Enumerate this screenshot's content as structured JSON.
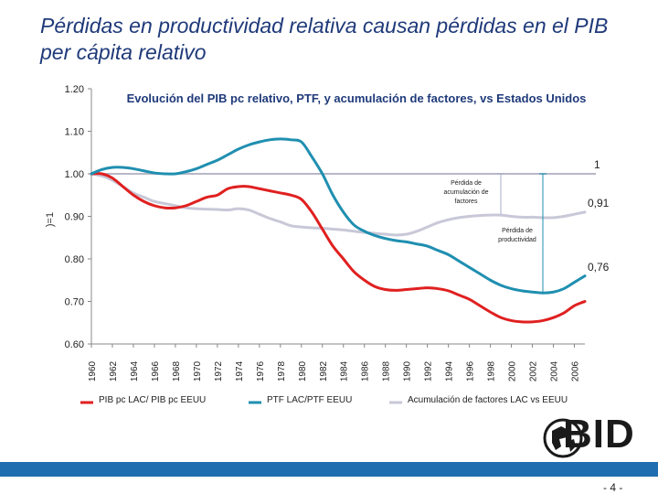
{
  "page": {
    "title": "Pérdidas en productividad relativa causan pérdidas en el PIB per cápita relativo",
    "logo_text": "BID",
    "page_number": "- 4 -"
  },
  "chart_data": {
    "type": "line",
    "title": "Evolución del PIB pc relativo, PTF, y acumulación de factores, vs Estados Unidos",
    "ylabel": ")=1",
    "ylim": [
      0.6,
      1.2
    ],
    "y_ticks": [
      "0.60",
      "0.70",
      "0.80",
      "0.90",
      "1.00",
      "1.10",
      "1.20"
    ],
    "x_ticks": [
      "1960",
      "1962",
      "1964",
      "1966",
      "1968",
      "1970",
      "1972",
      "1974",
      "1976",
      "1978",
      "1980",
      "1982",
      "1984",
      "1986",
      "1988",
      "1990",
      "1992",
      "1994",
      "1996",
      "1998",
      "2000",
      "2002",
      "2004",
      "2006"
    ],
    "x": [
      1960,
      1961,
      1962,
      1963,
      1964,
      1965,
      1966,
      1967,
      1968,
      1969,
      1970,
      1971,
      1972,
      1973,
      1974,
      1975,
      1976,
      1977,
      1978,
      1979,
      1980,
      1981,
      1982,
      1983,
      1984,
      1985,
      1986,
      1987,
      1988,
      1989,
      1990,
      1991,
      1992,
      1993,
      1994,
      1995,
      1996,
      1997,
      1998,
      1999,
      2000,
      2001,
      2002,
      2003,
      2004,
      2005,
      2006,
      2007
    ],
    "series": [
      {
        "name": "PIB pc LAC/ PIB pc EEUU",
        "color": "#e02020",
        "values": [
          1.0,
          1.0,
          0.99,
          0.97,
          0.95,
          0.935,
          0.925,
          0.92,
          0.92,
          0.925,
          0.935,
          0.945,
          0.95,
          0.965,
          0.97,
          0.97,
          0.965,
          0.96,
          0.955,
          0.95,
          0.94,
          0.91,
          0.87,
          0.83,
          0.8,
          0.77,
          0.75,
          0.735,
          0.728,
          0.726,
          0.728,
          0.73,
          0.732,
          0.73,
          0.725,
          0.715,
          0.705,
          0.69,
          0.675,
          0.662,
          0.655,
          0.652,
          0.652,
          0.655,
          0.662,
          0.673,
          0.69,
          0.7
        ]
      },
      {
        "name": "PTF LAC/PTF EEUU",
        "color": "#1f8fb0",
        "values": [
          1.0,
          1.01,
          1.015,
          1.015,
          1.012,
          1.007,
          1.002,
          1.0,
          1.0,
          1.005,
          1.012,
          1.022,
          1.032,
          1.045,
          1.058,
          1.068,
          1.075,
          1.08,
          1.082,
          1.08,
          1.075,
          1.04,
          1.0,
          0.95,
          0.91,
          0.88,
          0.865,
          0.855,
          0.848,
          0.843,
          0.84,
          0.835,
          0.83,
          0.82,
          0.81,
          0.795,
          0.78,
          0.765,
          0.75,
          0.738,
          0.73,
          0.725,
          0.722,
          0.72,
          0.722,
          0.73,
          0.745,
          0.76
        ]
      },
      {
        "name": "Acumulación de factores LAC vs EEUU",
        "color": "#c8c8d8",
        "values": [
          1.0,
          0.995,
          0.985,
          0.97,
          0.955,
          0.945,
          0.935,
          0.93,
          0.925,
          0.92,
          0.918,
          0.917,
          0.916,
          0.915,
          0.918,
          0.915,
          0.905,
          0.895,
          0.887,
          0.878,
          0.875,
          0.873,
          0.872,
          0.87,
          0.868,
          0.865,
          0.862,
          0.86,
          0.858,
          0.856,
          0.858,
          0.865,
          0.875,
          0.885,
          0.892,
          0.897,
          0.9,
          0.902,
          0.903,
          0.903,
          0.9,
          0.898,
          0.898,
          0.897,
          0.897,
          0.9,
          0.905,
          0.91
        ]
      }
    ],
    "annotations": [
      {
        "text": "1",
        "near": "end of lines, at 1.00"
      },
      {
        "text": "0,91",
        "near": "end of accumulation line"
      },
      {
        "text": "0,76",
        "near": "end of PTF line"
      },
      {
        "text": "Pérdida de acumulación de factores",
        "near": "bracket 1.00 to 0.91"
      },
      {
        "text": "Pérdida de productividad",
        "near": "bracket 1.00 to 0.72"
      }
    ],
    "annotation_text": {
      "end_one": "1",
      "end_acum": "0,91",
      "end_ptf": "0,76",
      "loss_acum": [
        "Pérdida de",
        "acumulación de",
        "factores"
      ],
      "loss_prod": [
        "Pérdida de",
        "productividad"
      ]
    },
    "legend_position": "bottom"
  }
}
